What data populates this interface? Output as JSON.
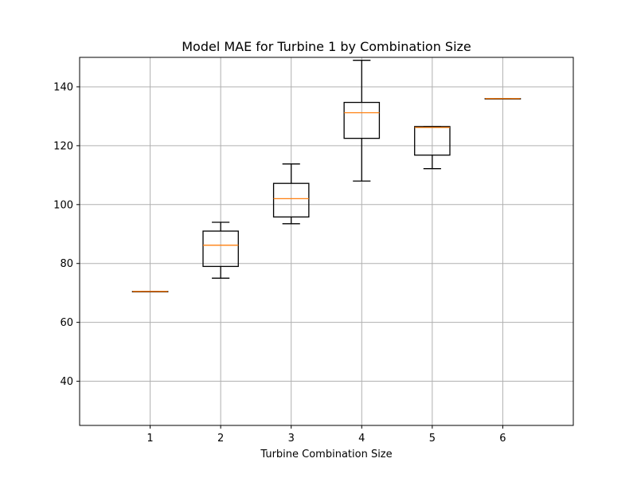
{
  "chart_data": {
    "type": "box",
    "title": "Model MAE for Turbine 1 by Combination Size",
    "xlabel": "Turbine Combination Size",
    "ylabel": "",
    "categories": [
      "1",
      "2",
      "3",
      "4",
      "5",
      "6"
    ],
    "boxes": [
      {
        "category": "1",
        "whisker_low": 70.5,
        "q1": 70.5,
        "median": 70.5,
        "q3": 70.5,
        "whisker_high": 70.5
      },
      {
        "category": "2",
        "whisker_low": 75.0,
        "q1": 79.0,
        "median": 86.2,
        "q3": 91.0,
        "whisker_high": 94.0
      },
      {
        "category": "3",
        "whisker_low": 93.5,
        "q1": 95.8,
        "median": 102.0,
        "q3": 107.2,
        "whisker_high": 113.8
      },
      {
        "category": "4",
        "whisker_low": 108.0,
        "q1": 122.5,
        "median": 131.2,
        "q3": 134.7,
        "whisker_high": 149.0
      },
      {
        "category": "5",
        "whisker_low": 112.2,
        "q1": 116.8,
        "median": 126.2,
        "q3": 126.5,
        "whisker_high": 126.5
      },
      {
        "category": "6",
        "whisker_low": 136.0,
        "q1": 136.0,
        "median": 136.0,
        "q3": 136.0,
        "whisker_high": 136.0
      }
    ],
    "xlim": [
      0,
      7
    ],
    "ylim": [
      25,
      150
    ],
    "yticks": [
      40,
      60,
      80,
      100,
      120,
      140
    ],
    "grid": true,
    "colors": {
      "box": "#000000",
      "median": "#ff7f0e",
      "grid": "#b0b0b0"
    }
  }
}
